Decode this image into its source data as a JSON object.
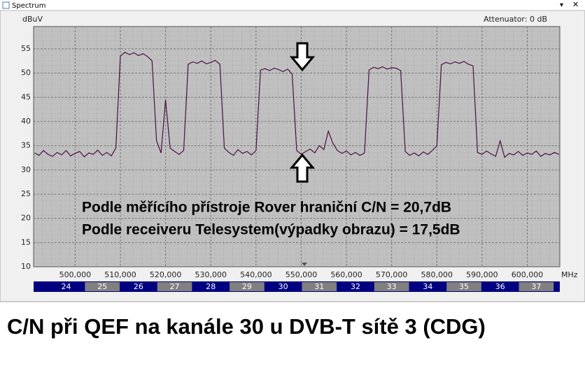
{
  "window_title": "Spectrum",
  "chart_data": {
    "type": "line",
    "y_label": "dBuV",
    "x_unit": "MHz",
    "attenuator": "Attenuator: 0 dB",
    "annotations": [
      "Podle měřícího přístroje Rover hraniční C/N = 20,7dB",
      "Podle receiveru Telesystem(výpadky obrazu) = 17,5dB"
    ],
    "xlim": [
      490.8,
      607.2
    ],
    "ylim": [
      10,
      59.6
    ],
    "yticks": [
      10,
      15,
      20,
      25,
      30,
      35,
      40,
      45,
      50,
      55
    ],
    "xticks": [
      {
        "value": 500,
        "label": "500,000"
      },
      {
        "value": 510,
        "label": "510,000"
      },
      {
        "value": 520,
        "label": "520,000"
      },
      {
        "value": 530,
        "label": "530,000"
      },
      {
        "value": 540,
        "label": "540,000"
      },
      {
        "value": 550,
        "label": "550,000"
      },
      {
        "value": 560,
        "label": "560,000"
      },
      {
        "value": 570,
        "label": "570,000"
      },
      {
        "value": 580,
        "label": "580,000"
      },
      {
        "value": 590,
        "label": "590,000"
      },
      {
        "value": 600,
        "label": "600,000"
      }
    ],
    "grid": true,
    "channels": [
      "24",
      "25",
      "26",
      "27",
      "28",
      "29",
      "30",
      "31",
      "32",
      "33",
      "34",
      "35",
      "36",
      "37"
    ],
    "series": [
      {
        "color": "#4a0f45",
        "x": [
          491,
          492,
          493,
          494,
          495,
          496,
          497,
          498,
          499,
          500,
          501,
          502,
          503,
          504,
          505,
          506,
          507,
          508,
          509,
          510,
          511,
          512,
          513,
          514,
          515,
          516,
          517,
          518,
          519,
          520,
          521,
          522,
          523,
          524,
          525,
          526,
          527,
          528,
          529,
          530,
          531,
          532,
          533,
          534,
          535,
          536,
          537,
          538,
          539,
          540,
          541,
          542,
          543,
          544,
          545,
          546,
          547,
          548,
          549,
          550,
          551,
          552,
          553,
          554,
          555,
          556,
          557,
          558,
          559,
          560,
          561,
          562,
          563,
          564,
          565,
          566,
          567,
          568,
          569,
          570,
          571,
          572,
          573,
          574,
          575,
          576,
          577,
          578,
          579,
          580,
          581,
          582,
          583,
          584,
          585,
          586,
          587,
          588,
          589,
          590,
          591,
          592,
          593,
          594,
          595,
          596,
          597,
          598,
          599,
          600,
          601,
          602,
          603,
          604,
          605,
          606,
          607
        ],
        "values": [
          33.5,
          33,
          34,
          33.2,
          32.8,
          33.6,
          33.1,
          34,
          32.9,
          33.4,
          33.8,
          32.7,
          33.5,
          33.2,
          34.1,
          33,
          33.6,
          32.9,
          34.5,
          53.5,
          54.3,
          53.8,
          54.2,
          53.6,
          54,
          53.4,
          52.5,
          36,
          33.5,
          44.5,
          34.5,
          33.8,
          33.2,
          34,
          51.8,
          52.3,
          52,
          52.5,
          51.9,
          52.2,
          52.6,
          51.8,
          34.5,
          33.6,
          33,
          34.2,
          33.4,
          33.8,
          33.1,
          34,
          50.6,
          50.9,
          50.5,
          51,
          50.7,
          50.3,
          50.8,
          49.8,
          34,
          33.2,
          33.8,
          34.3,
          33.5,
          35,
          34.2,
          38,
          35.5,
          34,
          33.4,
          33.9,
          33.1,
          33.6,
          33,
          33.5,
          50.6,
          51.2,
          50.9,
          51.3,
          50.8,
          51.1,
          51,
          50.5,
          33.8,
          33,
          33.5,
          32.9,
          33.7,
          33.2,
          34,
          35,
          51.7,
          52.2,
          51.9,
          52.3,
          52,
          52.4,
          51.8,
          51.5,
          33.6,
          33.2,
          33.9,
          33.3,
          32.8,
          36,
          32.6,
          33.4,
          33.1,
          33.8,
          33,
          33.5,
          33.2,
          33.9,
          32.8,
          33.4,
          33.1,
          33.6,
          33.2
        ]
      }
    ]
  },
  "caption": "C/N při QEF na kanále 30 u DVB-T sítě 3 (CDG)"
}
